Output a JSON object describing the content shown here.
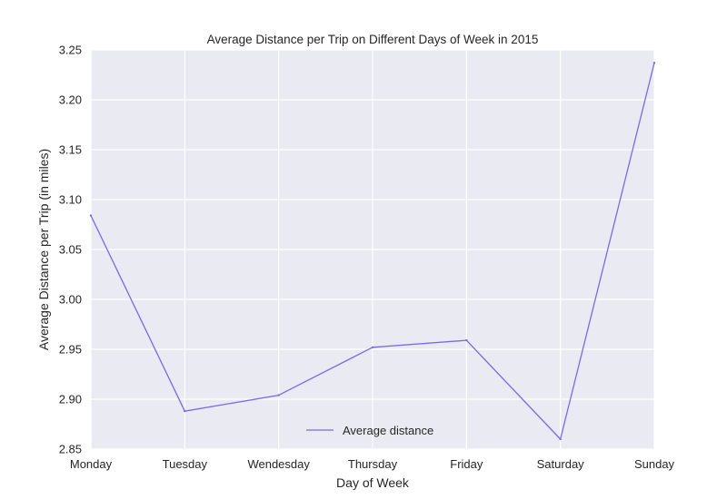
{
  "chart_data": {
    "type": "line",
    "title": "Average Distance per Trip on Different Days of Week in 2015",
    "xlabel": "Day of Week",
    "ylabel": "Average Distance per Trip (in miles)",
    "categories": [
      "Monday",
      "Tuesday",
      "Wendesday",
      "Thursday",
      "Friday",
      "Saturday",
      "Sunday"
    ],
    "series": [
      {
        "name": "Average distance",
        "values": [
          3.084,
          2.888,
          2.904,
          2.952,
          2.959,
          2.86,
          3.237
        ],
        "color": "#7b68ee"
      }
    ],
    "ylim": [
      2.85,
      3.25
    ],
    "yticks": [
      "2.85",
      "2.90",
      "2.95",
      "3.00",
      "3.05",
      "3.10",
      "3.15",
      "3.20",
      "3.25"
    ],
    "grid": true,
    "legend_position": "bottom-center",
    "background": "#eaeaf2",
    "grid_color": "#ffffff"
  }
}
